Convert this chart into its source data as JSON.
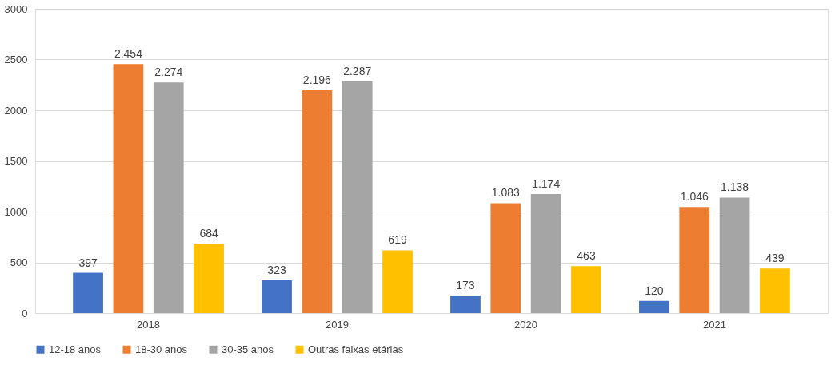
{
  "chart_data": {
    "type": "bar",
    "categories": [
      "2018",
      "2019",
      "2020",
      "2021"
    ],
    "series": [
      {
        "name": "12-18 anos",
        "color": "#4472c4",
        "values": [
          397,
          323,
          173,
          120
        ],
        "value_labels": [
          "397",
          "323",
          "173",
          "120"
        ]
      },
      {
        "name": "18-30 anos",
        "color": "#ed7d31",
        "values": [
          2454,
          2196,
          1083,
          1046
        ],
        "value_labels": [
          "2.454",
          "2.196",
          "1.083",
          "1.046"
        ]
      },
      {
        "name": "30-35 anos",
        "color": "#a5a5a5",
        "values": [
          2274,
          2287,
          1174,
          1138
        ],
        "value_labels": [
          "2.274",
          "2.287",
          "1.174",
          "1.138"
        ]
      },
      {
        "name": "Outras faixas etárias",
        "color": "#ffc000",
        "values": [
          684,
          619,
          463,
          439
        ],
        "value_labels": [
          "684",
          "619",
          "463",
          "439"
        ]
      }
    ],
    "ylim": [
      0,
      3000
    ],
    "yticks": [
      0,
      500,
      1000,
      1500,
      2000,
      2500,
      3000
    ],
    "grid": "y",
    "legend": "bottom"
  }
}
